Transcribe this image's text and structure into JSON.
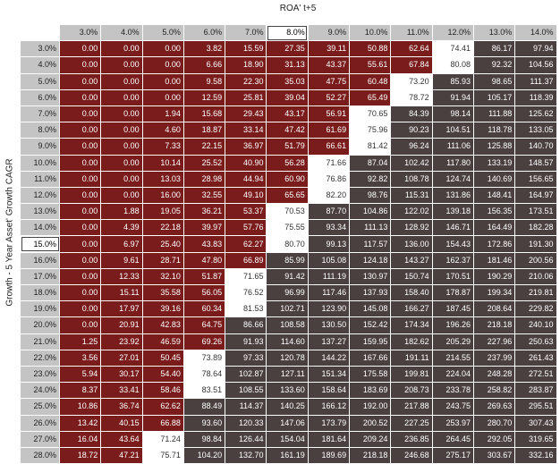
{
  "title": "ROA' t+5",
  "row_axis_label": "Growth - 5 Year Asset' Growth CAGR",
  "selected_col_index": 5,
  "selected_row_index": 12,
  "colors": {
    "low": "#7a1c1c",
    "mid": "#ffffff",
    "high": "#4a4040",
    "header": "#c4c4c4"
  },
  "col_headers": [
    "3.0%",
    "4.0%",
    "5.0%",
    "6.0%",
    "7.0%",
    "8.0%",
    "9.0%",
    "10.0%",
    "11.0%",
    "12.0%",
    "13.0%",
    "14.0%"
  ],
  "row_headers": [
    "3.0%",
    "4.0%",
    "5.0%",
    "6.0%",
    "7.0%",
    "8.0%",
    "9.0%",
    "10.0%",
    "11.0%",
    "12.0%",
    "13.0%",
    "14.0%",
    "15.0%",
    "16.0%",
    "17.0%",
    "18.0%",
    "19.0%",
    "20.0%",
    "21.0%",
    "22.0%",
    "23.0%",
    "24.0%",
    "25.0%",
    "26.0%",
    "27.0%",
    "28.0%"
  ],
  "values": [
    [
      "0.00",
      "0.00",
      "0.00",
      "3.82",
      "15.59",
      "27.35",
      "39.11",
      "50.88",
      "62.64",
      "74.41",
      "86.17",
      "97.94"
    ],
    [
      "0.00",
      "0.00",
      "0.00",
      "6.66",
      "18.90",
      "31.13",
      "43.37",
      "55.61",
      "67.84",
      "80.08",
      "92.32",
      "104.56"
    ],
    [
      "0.00",
      "0.00",
      "0.00",
      "9.58",
      "22.30",
      "35.03",
      "47.75",
      "60.48",
      "73.20",
      "85.93",
      "98.65",
      "111.37"
    ],
    [
      "0.00",
      "0.00",
      "0.00",
      "12.59",
      "25.81",
      "39.04",
      "52.27",
      "65.49",
      "78.72",
      "91.94",
      "105.17",
      "118.39"
    ],
    [
      "0.00",
      "0.00",
      "1.94",
      "15.68",
      "29.43",
      "43.17",
      "56.91",
      "70.65",
      "84.39",
      "98.14",
      "111.88",
      "125.62"
    ],
    [
      "0.00",
      "0.00",
      "4.60",
      "18.87",
      "33.14",
      "47.42",
      "61.69",
      "75.96",
      "90.23",
      "104.51",
      "118.78",
      "133.05"
    ],
    [
      "0.00",
      "0.00",
      "7.33",
      "22.15",
      "36.97",
      "51.79",
      "66.61",
      "81.42",
      "96.24",
      "111.06",
      "125.88",
      "140.70"
    ],
    [
      "0.00",
      "0.00",
      "10.14",
      "25.52",
      "40.90",
      "56.28",
      "71.66",
      "87.04",
      "102.42",
      "117.80",
      "133.19",
      "148.57"
    ],
    [
      "0.00",
      "0.00",
      "13.03",
      "28.98",
      "44.94",
      "60.90",
      "76.86",
      "92.82",
      "108.78",
      "124.74",
      "140.69",
      "156.65"
    ],
    [
      "0.00",
      "0.00",
      "16.00",
      "32.55",
      "49.10",
      "65.65",
      "82.20",
      "98.76",
      "115.31",
      "131.86",
      "148.41",
      "164.97"
    ],
    [
      "0.00",
      "1.88",
      "19.05",
      "36.21",
      "53.37",
      "70.53",
      "87.70",
      "104.86",
      "122.02",
      "139.18",
      "156.35",
      "173.51"
    ],
    [
      "0.00",
      "4.39",
      "22.18",
      "39.97",
      "57.76",
      "75.55",
      "93.34",
      "111.13",
      "128.92",
      "146.71",
      "164.49",
      "182.28"
    ],
    [
      "0.00",
      "6.97",
      "25.40",
      "43.83",
      "62.27",
      "80.70",
      "99.13",
      "117.57",
      "136.00",
      "154.43",
      "172.86",
      "191.30"
    ],
    [
      "0.00",
      "9.61",
      "28.71",
      "47.80",
      "66.89",
      "85.99",
      "105.08",
      "124.18",
      "143.27",
      "162.37",
      "181.46",
      "200.56"
    ],
    [
      "0.00",
      "12.33",
      "32.10",
      "51.87",
      "71.65",
      "91.42",
      "111.19",
      "130.97",
      "150.74",
      "170.51",
      "190.29",
      "210.06"
    ],
    [
      "0.00",
      "15.11",
      "35.58",
      "56.05",
      "76.52",
      "96.99",
      "117.46",
      "137.93",
      "158.40",
      "178.87",
      "199.34",
      "219.81"
    ],
    [
      "0.00",
      "17.97",
      "39.16",
      "60.34",
      "81.53",
      "102.71",
      "123.90",
      "145.08",
      "166.27",
      "187.45",
      "208.64",
      "229.82"
    ],
    [
      "0.00",
      "20.91",
      "42.83",
      "64.75",
      "86.66",
      "108.58",
      "130.50",
      "152.42",
      "174.34",
      "196.26",
      "218.18",
      "240.10"
    ],
    [
      "1.25",
      "23.92",
      "46.59",
      "69.26",
      "91.93",
      "114.60",
      "137.27",
      "159.95",
      "182.62",
      "205.29",
      "227.96",
      "250.63"
    ],
    [
      "3.56",
      "27.01",
      "50.45",
      "73.89",
      "97.33",
      "120.78",
      "144.22",
      "167.66",
      "191.11",
      "214.55",
      "237.99",
      "261.43"
    ],
    [
      "5.94",
      "30.17",
      "54.40",
      "78.64",
      "102.87",
      "127.11",
      "151.34",
      "175.58",
      "199.81",
      "224.04",
      "248.28",
      "272.51"
    ],
    [
      "8.37",
      "33.41",
      "58.46",
      "83.51",
      "108.55",
      "133.60",
      "158.64",
      "183.69",
      "208.73",
      "233.78",
      "258.82",
      "283.87"
    ],
    [
      "10.86",
      "36.74",
      "62.62",
      "88.49",
      "114.37",
      "140.25",
      "166.12",
      "192.00",
      "217.88",
      "243.75",
      "269.63",
      "295.51"
    ],
    [
      "13.42",
      "40.15",
      "66.88",
      "93.60",
      "120.33",
      "147.06",
      "173.79",
      "200.52",
      "227.25",
      "253.97",
      "280.70",
      "307.43"
    ],
    [
      "16.04",
      "43.64",
      "71.24",
      "98.84",
      "126.44",
      "154.04",
      "181.64",
      "209.24",
      "236.85",
      "264.45",
      "292.05",
      "319.65"
    ],
    [
      "18.72",
      "47.21",
      "75.71",
      "104.20",
      "132.70",
      "161.19",
      "189.69",
      "218.18",
      "246.68",
      "275.17",
      "303.67",
      "332.16"
    ]
  ]
}
